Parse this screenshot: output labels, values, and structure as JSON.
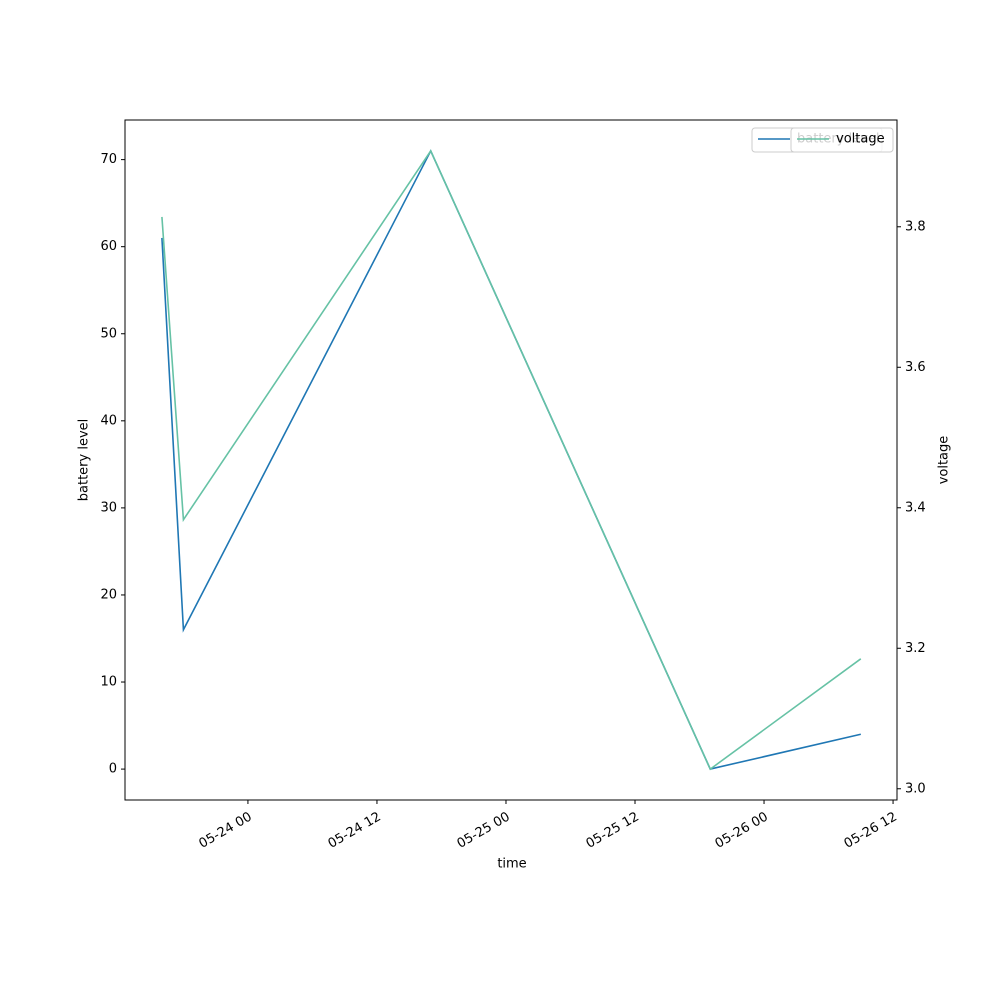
{
  "chart_data": {
    "type": "line",
    "x": [
      "05-23 16",
      "05-23 18",
      "05-24 17",
      "05-25 19",
      "05-26 09"
    ],
    "xlim": [
      "05-23 12:34",
      "05-26 12:22"
    ],
    "xticks": [
      "05-24 00",
      "05-24 12",
      "05-25 00",
      "05-25 12",
      "05-26 00",
      "05-26 12"
    ],
    "xlabel": "time",
    "ylabel": "battery level",
    "y2label": "voltage",
    "ylim": [
      -3.55,
      74.55
    ],
    "yticks": [
      0,
      10,
      20,
      30,
      40,
      50,
      60,
      70
    ],
    "y2lim": [
      2.984,
      3.952
    ],
    "y2ticks": [
      {
        "value": 3,
        "label": "3.0"
      },
      3.2,
      3.4,
      3.6,
      3.8
    ],
    "legend": "upper right",
    "series": [
      {
        "name": "battery level",
        "color": "#1f77b4",
        "values": [
          61,
          16,
          71,
          0,
          4
        ]
      },
      {
        "name": "voltage",
        "color": "#66c2a5",
        "axis": "y2",
        "values": [
          3.814,
          3.383,
          3.908,
          3.028,
          3.185
        ]
      }
    ]
  }
}
